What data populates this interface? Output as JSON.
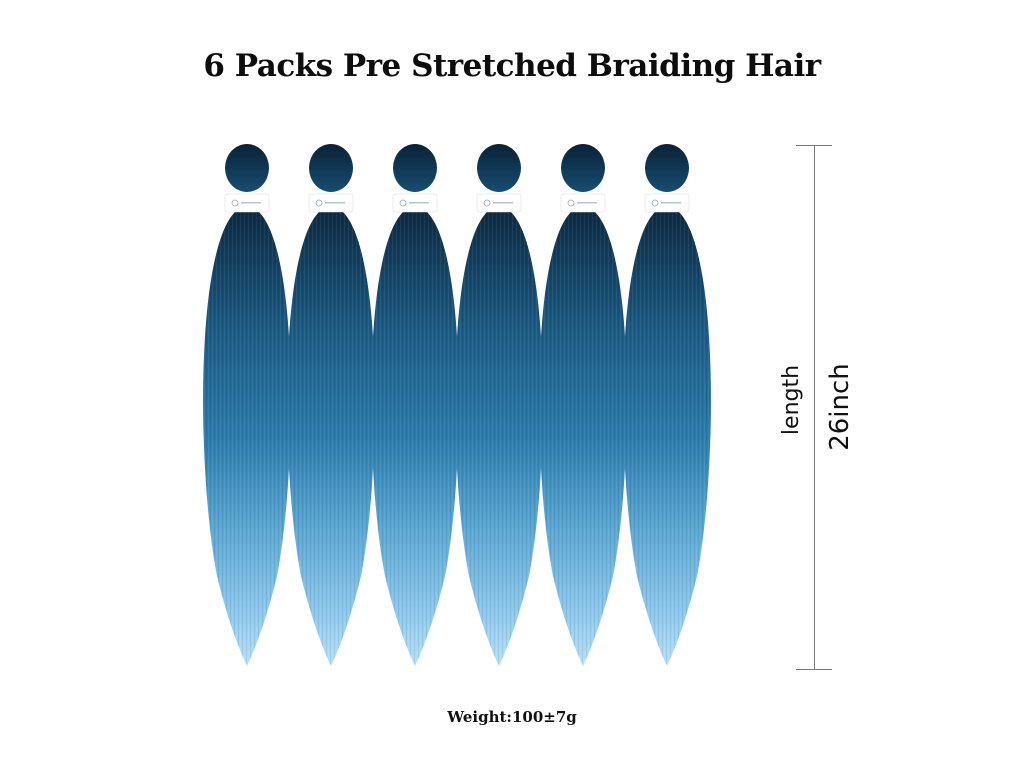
{
  "title": "6 Packs Pre Stretched Braiding Hair",
  "measurement": {
    "label": "length",
    "value": "26inch"
  },
  "weight": "Weight:100±7g",
  "product": {
    "pack_count": 6,
    "colors": {
      "top": "#0f3550",
      "mid": "#1e6a96",
      "bottom": "#9fd3f2",
      "band": "#ffffff"
    }
  }
}
